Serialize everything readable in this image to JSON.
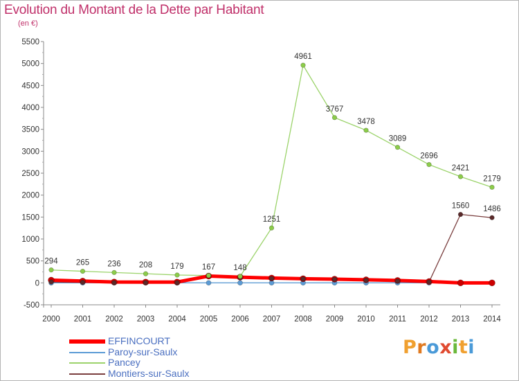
{
  "title": "Evolution du Montant de la Dette par Habitant",
  "subtitle": "(en €)",
  "logo": {
    "text": "Proxiti",
    "letters": [
      {
        "ch": "P",
        "color": "#f0a030"
      },
      {
        "ch": "r",
        "color": "#e07a20"
      },
      {
        "ch": "o",
        "color": "#4a9ad8"
      },
      {
        "ch": "x",
        "color": "#e04a30"
      },
      {
        "ch": "i",
        "color": "#6ab83a"
      },
      {
        "ch": "t",
        "color": "#f0a030"
      },
      {
        "ch": "i",
        "color": "#4a9ad8"
      }
    ]
  },
  "chart_data": {
    "type": "line",
    "title": "Evolution du Montant de la Dette par Habitant",
    "subtitle": "(en €)",
    "xlabel": "",
    "ylabel": "",
    "ylim": [
      -500,
      5500
    ],
    "yticks": [
      -500,
      0,
      500,
      1000,
      1500,
      2000,
      2500,
      3000,
      3500,
      4000,
      4500,
      5000,
      5500
    ],
    "grid": false,
    "legend_position": "bottom-left",
    "x": [
      2000,
      2001,
      2002,
      2003,
      2004,
      2005,
      2006,
      2007,
      2008,
      2009,
      2010,
      2011,
      2012,
      2013,
      2014
    ],
    "series": [
      {
        "name": "EFFINCOURT",
        "color": "#ff0000",
        "values": [
          62,
          40,
          20,
          18,
          18,
          155,
          130,
          110,
          95,
          85,
          70,
          55,
          30,
          0,
          0
        ]
      },
      {
        "name": "Paroy-sur-Saulx",
        "color": "#5b9bd5",
        "values": [
          0,
          0,
          0,
          0,
          0,
          0,
          0,
          0,
          0,
          0,
          0,
          0,
          0,
          0,
          0
        ]
      },
      {
        "name": "Pancey",
        "color": "#9bd36a",
        "values": [
          294,
          265,
          236,
          208,
          179,
          167,
          148,
          1251,
          4961,
          3767,
          3478,
          3089,
          2696,
          2421,
          2179
        ],
        "labels": [
          "294",
          "265",
          "236",
          "208",
          "179",
          "167",
          "148",
          "1251",
          "4961",
          "3767",
          "3478",
          "3089",
          "2696",
          "2421",
          "2179"
        ]
      },
      {
        "name": "Montiers-sur-Saulx",
        "color": "#7a3e3e",
        "values": [
          20,
          10,
          5,
          4,
          3,
          160,
          120,
          100,
          90,
          80,
          60,
          40,
          20,
          1560,
          1486
        ],
        "labels": [
          "",
          "",
          "",
          "",
          "",
          "",
          "",
          "",
          "",
          "",
          "",
          "",
          "",
          "1560",
          "1486"
        ]
      }
    ]
  }
}
